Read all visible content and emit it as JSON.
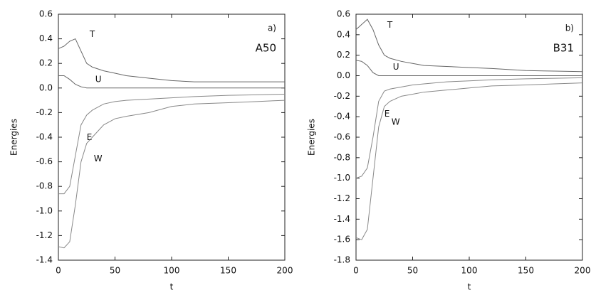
{
  "chart_data": [
    {
      "type": "line",
      "panel_label": "a)",
      "annotation": "A50",
      "xlabel": "t",
      "ylabel": "Energies",
      "x": [
        0,
        5,
        10,
        15,
        20,
        25,
        30,
        40,
        50,
        60,
        80,
        100,
        120,
        150,
        175,
        200
      ],
      "xlim": [
        0,
        200
      ],
      "xticks": [
        0,
        50,
        100,
        150,
        200
      ],
      "ylim": [
        -1.4,
        0.6
      ],
      "yticks": [
        -1.4,
        -1.2,
        {
          "value": -1,
          "label": "-1.0"
        },
        -0.8,
        -0.6,
        -0.4,
        -0.2,
        {
          "value": 0,
          "label": "0.0"
        },
        0.2,
        0.4,
        0.6
      ],
      "series": [
        {
          "name": "T",
          "color": "#666666",
          "values": [
            0.32,
            0.34,
            0.38,
            0.4,
            0.3,
            0.2,
            0.17,
            0.14,
            0.12,
            0.1,
            0.08,
            0.06,
            0.05,
            0.05,
            0.05,
            0.05
          ]
        },
        {
          "name": "U",
          "color": "#666666",
          "values": [
            0.1,
            0.1,
            0.07,
            0.03,
            0.01,
            0,
            0,
            0,
            0,
            0,
            0,
            0,
            0,
            0,
            0,
            0
          ]
        },
        {
          "name": "E",
          "color": "#888888",
          "values": [
            -0.86,
            -0.86,
            -0.8,
            -0.55,
            -0.3,
            -0.22,
            -0.18,
            -0.13,
            -0.11,
            -0.1,
            -0.09,
            -0.08,
            -0.07,
            -0.06,
            -0.055,
            -0.05
          ]
        },
        {
          "name": "W",
          "color": "#888888",
          "values": [
            -1.29,
            -1.3,
            -1.25,
            -0.95,
            -0.6,
            -0.45,
            -0.4,
            -0.3,
            -0.25,
            -0.23,
            -0.2,
            -0.15,
            -0.13,
            -0.12,
            -0.11,
            -0.1
          ]
        }
      ]
    },
    {
      "type": "line",
      "panel_label": "b)",
      "annotation": "B31",
      "xlabel": "t",
      "ylabel": "Energies",
      "x": [
        0,
        5,
        10,
        15,
        20,
        25,
        30,
        40,
        50,
        60,
        80,
        100,
        120,
        150,
        175,
        200
      ],
      "xlim": [
        0,
        200
      ],
      "xticks": [
        0,
        50,
        100,
        150,
        200
      ],
      "ylim": [
        -1.8,
        0.6
      ],
      "yticks": [
        -1.8,
        -1.6,
        -1.4,
        -1.2,
        {
          "value": -1,
          "label": "-1.0"
        },
        -0.8,
        -0.6,
        -0.4,
        -0.2,
        {
          "value": 0,
          "label": "0.0"
        },
        0.2,
        0.4,
        0.6
      ],
      "series": [
        {
          "name": "T",
          "color": "#666666",
          "values": [
            0.45,
            0.5,
            0.55,
            0.45,
            0.3,
            0.2,
            0.17,
            0.14,
            0.12,
            0.1,
            0.09,
            0.08,
            0.07,
            0.05,
            0.045,
            0.04
          ]
        },
        {
          "name": "U",
          "color": "#666666",
          "values": [
            0.15,
            0.14,
            0.1,
            0.03,
            0,
            0,
            0,
            0,
            0,
            0,
            0,
            0,
            0,
            0,
            0,
            0
          ]
        },
        {
          "name": "E",
          "color": "#888888",
          "values": [
            -1,
            -0.98,
            -0.9,
            -0.6,
            -0.25,
            -0.15,
            -0.13,
            -0.11,
            -0.09,
            -0.08,
            -0.06,
            -0.05,
            -0.04,
            -0.03,
            -0.025,
            -0.02
          ]
        },
        {
          "name": "W",
          "color": "#888888",
          "values": [
            -1.58,
            -1.6,
            -1.5,
            -1,
            -0.5,
            -0.3,
            -0.25,
            -0.2,
            -0.18,
            -0.16,
            -0.14,
            -0.12,
            -0.1,
            -0.09,
            -0.08,
            -0.07
          ]
        }
      ]
    }
  ]
}
